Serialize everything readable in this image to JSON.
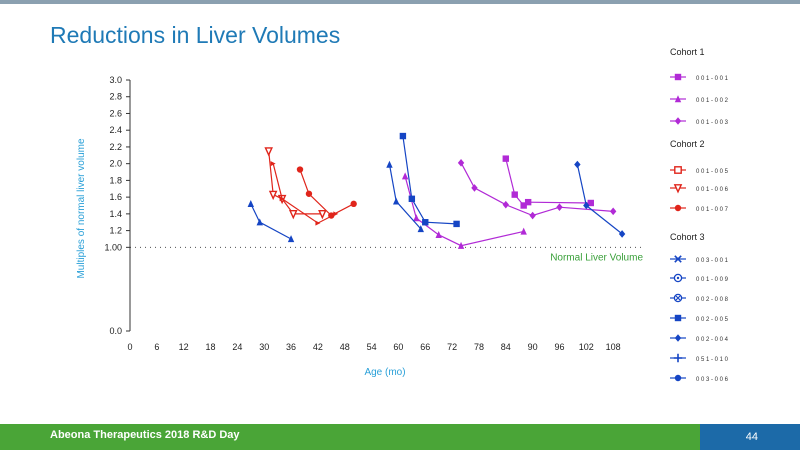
{
  "page": {
    "title": "Reductions in Liver Volumes",
    "footer": "Abeona Therapeutics 2018 R&D Day",
    "page_number": "44"
  },
  "colors": {
    "cohort1": "#b12ad6",
    "cohort2": "#e0251b",
    "cohort3": "#1545c4",
    "axis_label": "#2aa0d8",
    "normal_line": "#3aa03a",
    "title": "#1f7ab6",
    "footer": "#4aa537"
  },
  "chart_data": {
    "type": "line",
    "title": "Reductions in Liver Volumes",
    "xlabel": "Age (mo)",
    "ylabel": "Multiples of normal liver volume",
    "xlim": [
      0,
      114
    ],
    "ylim": [
      0,
      3.0
    ],
    "x_ticks": [
      0,
      6,
      12,
      18,
      24,
      30,
      36,
      42,
      48,
      54,
      60,
      66,
      72,
      78,
      84,
      90,
      96,
      102,
      108
    ],
    "x_tick_labels": [
      "0",
      "6",
      "12",
      "18",
      "24",
      "30",
      "36",
      "42",
      "48",
      "54",
      "60",
      "66",
      "72",
      "78",
      "84",
      "90",
      "96",
      "102",
      "108"
    ],
    "y_ticks": [
      0,
      1.0,
      1.2,
      1.4,
      1.6,
      1.8,
      2.0,
      2.2,
      2.4,
      2.6,
      2.8,
      3.0
    ],
    "y_tick_labels": [
      "0.0",
      "1.00",
      "1.2",
      "1.4",
      "1.6",
      "1.8",
      "2.0",
      "2.2",
      "2.4",
      "2.6",
      "2.8",
      "3.0"
    ],
    "reference_line": {
      "y": 1.0,
      "label": "Normal Liver Volume"
    },
    "legend": [
      {
        "cohort": "Cohort 1",
        "color_key": "cohort1",
        "series": [
          {
            "name": "0 0 1 - 0 0 1",
            "marker": "square",
            "points": [
              [
                89,
                1.54
              ],
              [
                103,
                1.53
              ]
            ]
          },
          {
            "name": "0 0 1 - 0 0 2",
            "marker": "triangle",
            "points": [
              [
                61.5,
                1.85
              ],
              [
                64,
                1.35
              ],
              [
                69,
                1.15
              ],
              [
                74,
                1.02
              ],
              [
                88,
                1.19
              ]
            ]
          },
          {
            "name": "0 0 1 - 0 0 3",
            "marker": "diamond",
            "points": [
              [
                74,
                2.01
              ],
              [
                77,
                1.71
              ],
              [
                84,
                1.51
              ],
              [
                90,
                1.38
              ],
              [
                96,
                1.48
              ],
              [
                108,
                1.43
              ]
            ]
          }
        ]
      },
      {
        "cohort": "Cohort 2",
        "color_key": "cohort2",
        "series": [
          {
            "name": "0 0 1 - 0 0 5",
            "marker": "square-open",
            "points": []
          },
          {
            "name": "0 0 1 - 0 0 6",
            "marker": "triangle-down-open",
            "points": [
              [
                31,
                2.15
              ],
              [
                32,
                1.63
              ],
              [
                34,
                1.58
              ],
              [
                36.5,
                1.4
              ],
              [
                43,
                1.4
              ]
            ]
          },
          {
            "name": "0 0 1 - 0 0 7",
            "marker": "circle",
            "points": [
              [
                38,
                1.93
              ],
              [
                40,
                1.64
              ],
              [
                45,
                1.38
              ],
              [
                50,
                1.52
              ]
            ]
          }
        ]
      },
      {
        "cohort": "Cohort 3",
        "color_key": "cohort3",
        "series": [
          {
            "name": "0 0 3 - 0 0 1",
            "marker": "x",
            "points": []
          },
          {
            "name": "0 0 1 - 0 0 9",
            "marker": "circle-dot",
            "points": []
          },
          {
            "name": "0 0 2 - 0 0 8",
            "marker": "circle-x",
            "points": []
          },
          {
            "name": "0 0 2 - 0 0 5",
            "marker": "square",
            "points": [
              [
                61,
                2.33
              ],
              [
                63,
                1.58
              ],
              [
                66,
                1.3
              ],
              [
                73,
                1.28
              ]
            ]
          },
          {
            "name": "0 0 2 - 0 0 4",
            "marker": "diamond",
            "points": [
              [
                100,
                1.99
              ],
              [
                102,
                1.5
              ],
              [
                110,
                1.16
              ]
            ]
          },
          {
            "name": "0 5 1 - 0 1 0",
            "marker": "plus",
            "points": []
          },
          {
            "name": "0 0 3 - 0 0 6",
            "marker": "circle",
            "points": []
          }
        ]
      }
    ],
    "extra_series": [
      {
        "color_key": "cohort2",
        "marker": "arrow",
        "points": [
          [
            32,
            2.0
          ],
          [
            34,
            1.58
          ],
          [
            42,
            1.29
          ],
          [
            46,
            1.4
          ]
        ]
      },
      {
        "color_key": "cohort3",
        "marker": "triangle",
        "points": [
          [
            27,
            1.52
          ],
          [
            29,
            1.3
          ],
          [
            36,
            1.1
          ]
        ]
      },
      {
        "color_key": "cohort3",
        "marker": "triangle",
        "points": [
          [
            58,
            1.99
          ],
          [
            59.5,
            1.55
          ],
          [
            65,
            1.22
          ]
        ]
      },
      {
        "color_key": "cohort1",
        "marker": "square",
        "points": [
          [
            84,
            2.06
          ],
          [
            86,
            1.63
          ],
          [
            88,
            1.5
          ]
        ]
      }
    ]
  }
}
